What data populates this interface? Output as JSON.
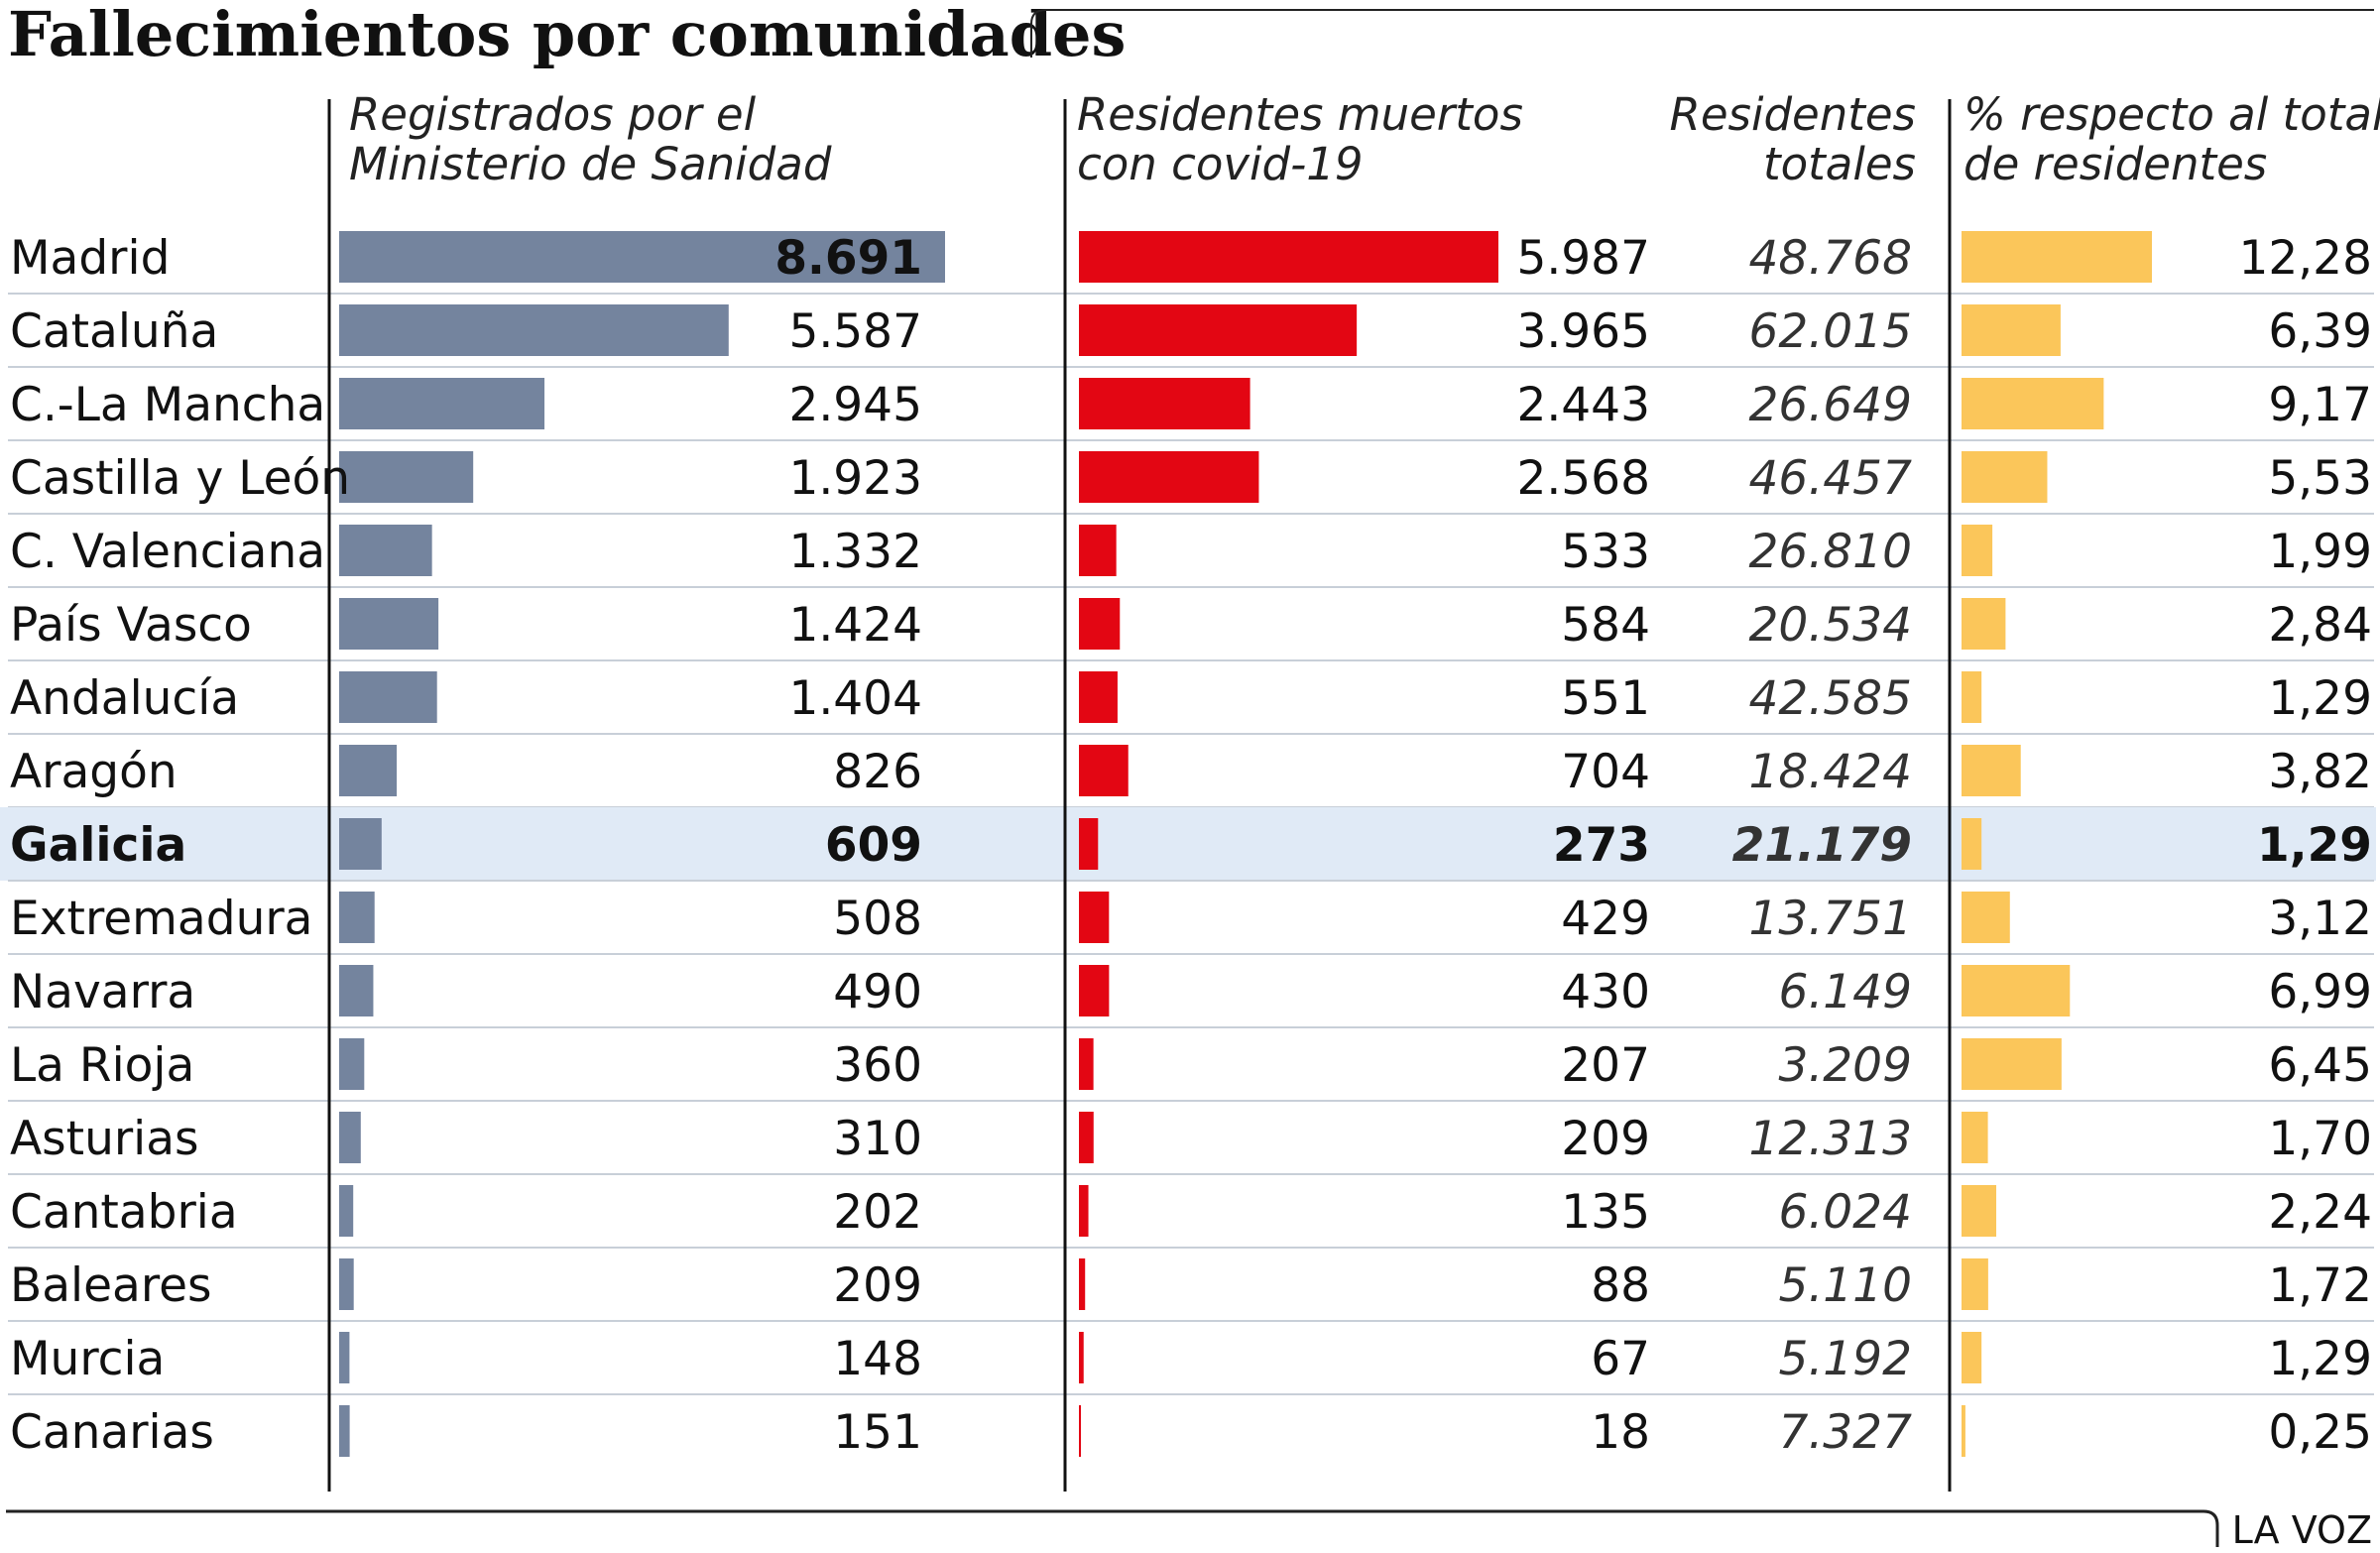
{
  "chart_data": {
    "type": "table",
    "title": "Fallecimientos por comunidades",
    "columns": [
      "Registrados por el Ministerio de Sanidad",
      "Residentes muertos con covid-19",
      "Residentes totales",
      "% respecto al total de residentes"
    ],
    "header_lines": {
      "ministry": [
        "Registrados por el",
        "Ministerio de Sanidad"
      ],
      "deaths": [
        "Residentes muertos",
        "con covid-19"
      ],
      "totals": [
        "Residentes",
        "totales"
      ],
      "percent": [
        "% respecto al total",
        "de residentes"
      ]
    },
    "rows": [
      {
        "region": "Madrid",
        "ministry": "8.691",
        "ministry_value": 8691,
        "deaths": "5.987",
        "deaths_value": 5987,
        "totals": "48.768",
        "percent": "12,28",
        "percent_value": 12.28
      },
      {
        "region": "Cataluña",
        "ministry": "5.587",
        "ministry_value": 5587,
        "deaths": "3.965",
        "deaths_value": 3965,
        "totals": "62.015",
        "percent": "6,39",
        "percent_value": 6.39
      },
      {
        "region": "C.-La Mancha",
        "ministry": "2.945",
        "ministry_value": 2945,
        "deaths": "2.443",
        "deaths_value": 2443,
        "totals": "26.649",
        "percent": "9,17",
        "percent_value": 9.17
      },
      {
        "region": "Castilla y León",
        "ministry": "1.923",
        "ministry_value": 1923,
        "deaths": "2.568",
        "deaths_value": 2568,
        "totals": "46.457",
        "percent": "5,53",
        "percent_value": 5.53
      },
      {
        "region": "C. Valenciana",
        "ministry": "1.332",
        "ministry_value": 1332,
        "deaths": "533",
        "deaths_value": 533,
        "totals": "26.810",
        "percent": "1,99",
        "percent_value": 1.99
      },
      {
        "region": "País Vasco",
        "ministry": "1.424",
        "ministry_value": 1424,
        "deaths": "584",
        "deaths_value": 584,
        "totals": "20.534",
        "percent": "2,84",
        "percent_value": 2.84
      },
      {
        "region": "Andalucía",
        "ministry": "1.404",
        "ministry_value": 1404,
        "deaths": "551",
        "deaths_value": 551,
        "totals": "42.585",
        "percent": "1,29",
        "percent_value": 1.29
      },
      {
        "region": "Aragón",
        "ministry": "826",
        "ministry_value": 826,
        "deaths": "704",
        "deaths_value": 704,
        "totals": "18.424",
        "percent": "3,82",
        "percent_value": 3.82
      },
      {
        "region": "Galicia",
        "ministry": "609",
        "ministry_value": 609,
        "deaths": "273",
        "deaths_value": 273,
        "totals": "21.179",
        "percent": "1,29",
        "percent_value": 1.29,
        "highlight": true
      },
      {
        "region": "Extremadura",
        "ministry": "508",
        "ministry_value": 508,
        "deaths": "429",
        "deaths_value": 429,
        "totals": "13.751",
        "percent": "3,12",
        "percent_value": 3.12
      },
      {
        "region": "Navarra",
        "ministry": "490",
        "ministry_value": 490,
        "deaths": "430",
        "deaths_value": 430,
        "totals": "6.149",
        "percent": "6,99",
        "percent_value": 6.99
      },
      {
        "region": "La Rioja",
        "ministry": "360",
        "ministry_value": 360,
        "deaths": "207",
        "deaths_value": 207,
        "totals": "3.209",
        "percent": "6,45",
        "percent_value": 6.45
      },
      {
        "region": "Asturias",
        "ministry": "310",
        "ministry_value": 310,
        "deaths": "209",
        "deaths_value": 209,
        "totals": "12.313",
        "percent": "1,70",
        "percent_value": 1.7
      },
      {
        "region": "Cantabria",
        "ministry": "202",
        "ministry_value": 202,
        "deaths": "135",
        "deaths_value": 135,
        "totals": "6.024",
        "percent": "2,24",
        "percent_value": 2.24
      },
      {
        "region": "Baleares",
        "ministry": "209",
        "ministry_value": 209,
        "deaths": "88",
        "deaths_value": 88,
        "totals": "5.110",
        "percent": "1,72",
        "percent_value": 1.72
      },
      {
        "region": "Murcia",
        "ministry": "148",
        "ministry_value": 148,
        "deaths": "67",
        "deaths_value": 67,
        "totals": "5.192",
        "percent": "1,29",
        "percent_value": 1.29
      },
      {
        "region": "Canarias",
        "ministry": "151",
        "ministry_value": 151,
        "deaths": "18",
        "deaths_value": 18,
        "totals": "7.327",
        "percent": "0,25",
        "percent_value": 0.25
      }
    ],
    "colors": {
      "ministry_bar": "#74849e",
      "deaths_bar": "#e30613",
      "percent_bar": "#fbc65a",
      "highlight_row": "#e0eaf6",
      "row_divider": "#c8cfd8",
      "column_rule": "#111111"
    }
  },
  "credit": "LA VOZ"
}
